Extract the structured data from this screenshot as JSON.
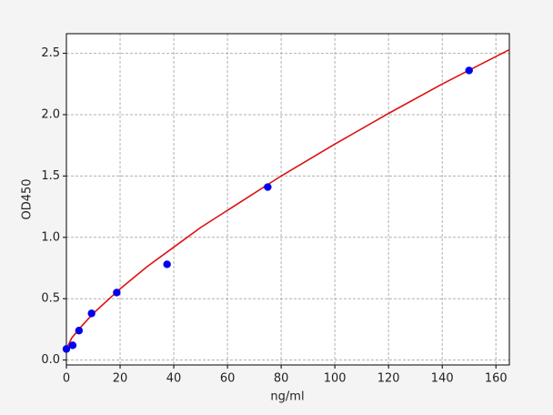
{
  "chart_data": {
    "type": "scatter",
    "x_label": "ng/ml",
    "y_label": "OD450",
    "xlim": [
      0,
      165
    ],
    "ylim": [
      -0.04,
      2.66
    ],
    "xticks": [
      0,
      20,
      40,
      60,
      80,
      100,
      120,
      140,
      160
    ],
    "yticks": [
      {
        "value": 0,
        "label": "0.0"
      },
      0.5,
      {
        "value": 1,
        "label": "1.0"
      },
      1.5,
      {
        "value": 2,
        "label": "2.0"
      },
      2.5
    ],
    "grid": true,
    "series": [
      {
        "type": "scatter",
        "color": "#0000ee",
        "x": [
          0,
          2.34,
          4.69,
          9.38,
          18.75,
          37.5,
          75,
          150
        ],
        "values": [
          0.09,
          0.12,
          0.24,
          0.38,
          0.55,
          0.78,
          1.41,
          2.36
        ]
      },
      {
        "type": "line",
        "color": "#dd1111",
        "x": [
          0,
          2,
          5,
          10,
          20,
          30,
          40,
          50,
          60,
          80,
          100,
          120,
          140,
          165
        ],
        "values": [
          0.09,
          0.18,
          0.26,
          0.38,
          0.58,
          0.76,
          0.92,
          1.08,
          1.22,
          1.5,
          1.76,
          2.01,
          2.25,
          2.53
        ]
      }
    ]
  }
}
